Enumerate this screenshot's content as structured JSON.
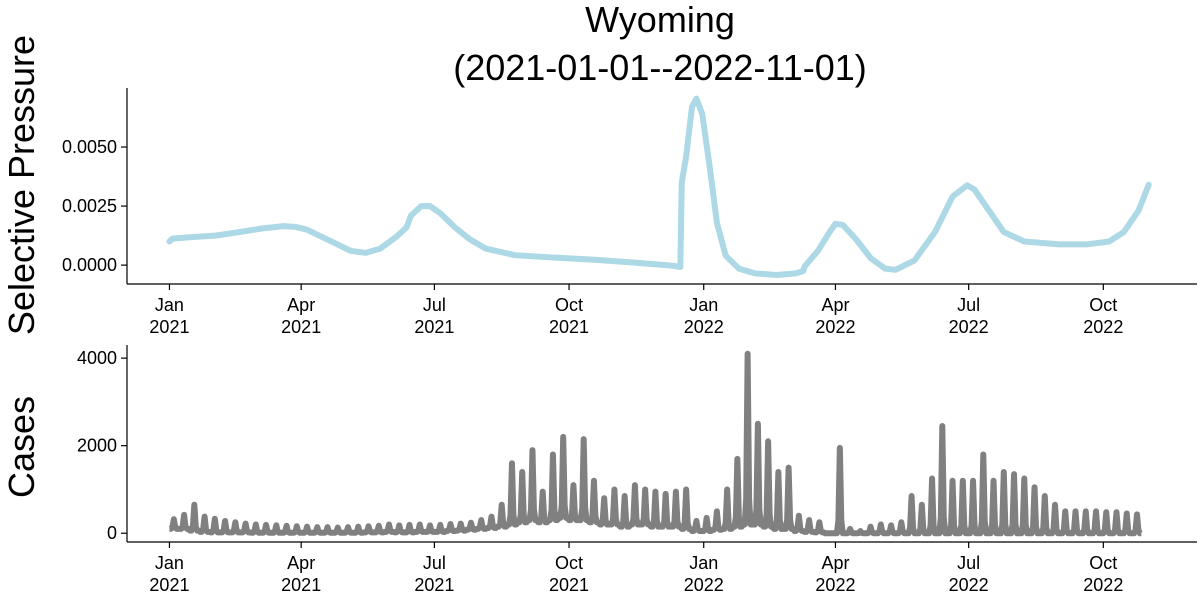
{
  "title_line1": "Wyoming",
  "title_line2": "(2021-01-01--2022-11-01)",
  "chart_data": [
    {
      "type": "line",
      "name": "selective-pressure",
      "ylabel": "Selective Pressure",
      "xlabel": "",
      "color": "#add8e6",
      "xlim": [
        "2020-12-03",
        "2022-12-04"
      ],
      "ylim": [
        -0.0008,
        0.0075
      ],
      "yticks": [
        0.0,
        0.0025,
        0.005
      ],
      "ytick_labels": [
        "0.0000",
        "0.0025",
        "0.0050"
      ],
      "xticks": [
        {
          "date": "2021-01-01",
          "label1": "Jan",
          "label2": "2021"
        },
        {
          "date": "2021-04-01",
          "label1": "Apr",
          "label2": "2021"
        },
        {
          "date": "2021-07-01",
          "label1": "Jul",
          "label2": "2021"
        },
        {
          "date": "2021-10-01",
          "label1": "Oct",
          "label2": "2021"
        },
        {
          "date": "2022-01-01",
          "label1": "Jan",
          "label2": "2022"
        },
        {
          "date": "2022-04-01",
          "label1": "Apr",
          "label2": "2022"
        },
        {
          "date": "2022-07-01",
          "label1": "Jul",
          "label2": "2022"
        },
        {
          "date": "2022-10-01",
          "label1": "Oct",
          "label2": "2022"
        }
      ],
      "points": [
        [
          "2021-01-01",
          0.001
        ],
        [
          "2021-01-03",
          0.00112
        ],
        [
          "2021-01-15",
          0.00118
        ],
        [
          "2021-02-01",
          0.00125
        ],
        [
          "2021-02-05",
          0.00128
        ],
        [
          "2021-02-20",
          0.00142
        ],
        [
          "2021-03-05",
          0.00155
        ],
        [
          "2021-03-20",
          0.00165
        ],
        [
          "2021-03-28",
          0.00162
        ],
        [
          "2021-04-05",
          0.0015
        ],
        [
          "2021-04-15",
          0.0012
        ],
        [
          "2021-04-25",
          0.0009
        ],
        [
          "2021-05-05",
          0.0006
        ],
        [
          "2021-05-15",
          0.00052
        ],
        [
          "2021-05-25",
          0.0007
        ],
        [
          "2021-06-05",
          0.0012
        ],
        [
          "2021-06-12",
          0.0016
        ],
        [
          "2021-06-15",
          0.0021
        ],
        [
          "2021-06-22",
          0.0025
        ],
        [
          "2021-06-28",
          0.0025
        ],
        [
          "2021-07-05",
          0.0022
        ],
        [
          "2021-07-15",
          0.0016
        ],
        [
          "2021-07-25",
          0.0011
        ],
        [
          "2021-08-05",
          0.0007
        ],
        [
          "2021-08-25",
          0.00042
        ],
        [
          "2021-09-20",
          0.00032
        ],
        [
          "2021-10-20",
          0.00022
        ],
        [
          "2021-11-20",
          8e-05
        ],
        [
          "2021-12-10",
          -2e-05
        ],
        [
          "2021-12-16",
          -8e-05
        ],
        [
          "2021-12-17",
          0.0035
        ],
        [
          "2021-12-20",
          0.0046
        ],
        [
          "2021-12-24",
          0.0067
        ],
        [
          "2021-12-27",
          0.00705
        ],
        [
          "2021-12-31",
          0.0064
        ],
        [
          "2022-01-05",
          0.0042
        ],
        [
          "2022-01-10",
          0.0018
        ],
        [
          "2022-01-16",
          0.0004
        ],
        [
          "2022-01-25",
          -0.00015
        ],
        [
          "2022-02-05",
          -0.00035
        ],
        [
          "2022-02-20",
          -0.00042
        ],
        [
          "2022-03-05",
          -0.00035
        ],
        [
          "2022-03-10",
          -0.00025
        ],
        [
          "2022-03-11",
          -5e-05
        ],
        [
          "2022-03-20",
          0.0006
        ],
        [
          "2022-03-28",
          0.0014
        ],
        [
          "2022-04-01",
          0.00175
        ],
        [
          "2022-04-06",
          0.0017
        ],
        [
          "2022-04-15",
          0.0011
        ],
        [
          "2022-04-25",
          0.0003
        ],
        [
          "2022-05-05",
          -0.00015
        ],
        [
          "2022-05-12",
          -0.0002
        ],
        [
          "2022-05-25",
          0.0002
        ],
        [
          "2022-06-08",
          0.0014
        ],
        [
          "2022-06-20",
          0.0029
        ],
        [
          "2022-06-30",
          0.00338
        ],
        [
          "2022-07-05",
          0.0032
        ],
        [
          "2022-07-15",
          0.0023
        ],
        [
          "2022-07-25",
          0.0014
        ],
        [
          "2022-08-08",
          0.001
        ],
        [
          "2022-09-01",
          0.00088
        ],
        [
          "2022-09-20",
          0.00088
        ],
        [
          "2022-10-05",
          0.001
        ],
        [
          "2022-10-15",
          0.0014
        ],
        [
          "2022-10-25",
          0.0023
        ],
        [
          "2022-11-01",
          0.0034
        ]
      ]
    },
    {
      "type": "line",
      "name": "cases",
      "ylabel": "Cases",
      "xlabel": "",
      "color": "#808080",
      "xlim": [
        "2020-12-03",
        "2022-12-04"
      ],
      "ylim": [
        -200,
        4300
      ],
      "yticks": [
        0,
        2000,
        4000
      ],
      "ytick_labels": [
        "0",
        "2000",
        "4000"
      ],
      "xticks": [
        {
          "date": "2021-01-01",
          "label1": "Jan",
          "label2": "2021"
        },
        {
          "date": "2021-04-01",
          "label1": "Apr",
          "label2": "2021"
        },
        {
          "date": "2021-07-01",
          "label1": "Jul",
          "label2": "2021"
        },
        {
          "date": "2021-10-01",
          "label1": "Oct",
          "label2": "2021"
        },
        {
          "date": "2022-01-01",
          "label1": "Jan",
          "label2": "2022"
        },
        {
          "date": "2022-04-01",
          "label1": "Apr",
          "label2": "2022"
        },
        {
          "date": "2022-07-01",
          "label1": "Jul",
          "label2": "2022"
        },
        {
          "date": "2022-10-01",
          "label1": "Oct",
          "label2": "2022"
        }
      ],
      "start_date": "2021-01-01",
      "weekly_peaks": [
        320,
        420,
        650,
        380,
        330,
        280,
        250,
        220,
        200,
        190,
        180,
        170,
        160,
        150,
        140,
        140,
        130,
        140,
        150,
        160,
        170,
        200,
        180,
        190,
        200,
        180,
        190,
        210,
        220,
        240,
        300,
        380,
        650,
        1600,
        1400,
        1900,
        950,
        1800,
        2200,
        1100,
        2150,
        1200,
        800,
        1000,
        850,
        1100,
        1000,
        950,
        900,
        950,
        1000,
        280,
        350,
        500,
        1000,
        1700,
        4100,
        2500,
        2100,
        1400,
        1500,
        400,
        300,
        250,
        0,
        1950,
        100,
        50,
        150,
        200,
        180,
        250,
        850,
        650,
        1250,
        2450,
        1200,
        1200,
        1200,
        1800,
        1200,
        1400,
        1350,
        1250,
        1050,
        850,
        650,
        500,
        500,
        500,
        500,
        480,
        480,
        450,
        430
      ],
      "weekly_lows": [
        100,
        100,
        60,
        30,
        20,
        20,
        20,
        20,
        10,
        10,
        10,
        10,
        10,
        10,
        10,
        10,
        10,
        10,
        10,
        20,
        20,
        30,
        20,
        20,
        30,
        30,
        30,
        50,
        60,
        80,
        100,
        120,
        150,
        200,
        250,
        300,
        250,
        300,
        350,
        300,
        300,
        250,
        200,
        200,
        150,
        200,
        200,
        150,
        150,
        150,
        100,
        50,
        50,
        80,
        100,
        150,
        200,
        200,
        150,
        100,
        100,
        50,
        30,
        20,
        0,
        0,
        0,
        0,
        0,
        0,
        0,
        0,
        0,
        0,
        0,
        0,
        0,
        0,
        0,
        0,
        0,
        0,
        0,
        0,
        0,
        0,
        0,
        0,
        0,
        0,
        0,
        0,
        0,
        0,
        0
      ]
    }
  ]
}
